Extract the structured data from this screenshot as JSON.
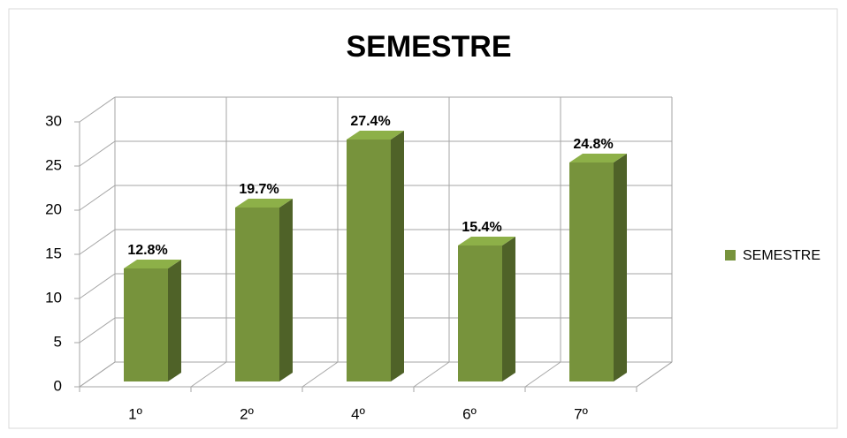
{
  "chart_data": {
    "type": "bar3d",
    "title": "SEMESTRE",
    "categories": [
      "1º",
      "2º",
      "4º",
      "6º",
      "7º"
    ],
    "series": [
      {
        "name": "SEMESTRE",
        "color": "#77933c",
        "values": [
          12.8,
          19.7,
          27.4,
          15.4,
          24.8
        ],
        "value_labels": [
          "12.8%",
          "19.7%",
          "27.4%",
          "15.4%",
          "24.8%"
        ]
      }
    ],
    "ylim": [
      0,
      30
    ],
    "yticks": [
      0,
      5,
      10,
      15,
      20,
      25,
      30
    ],
    "grid": true,
    "legend": "right"
  }
}
